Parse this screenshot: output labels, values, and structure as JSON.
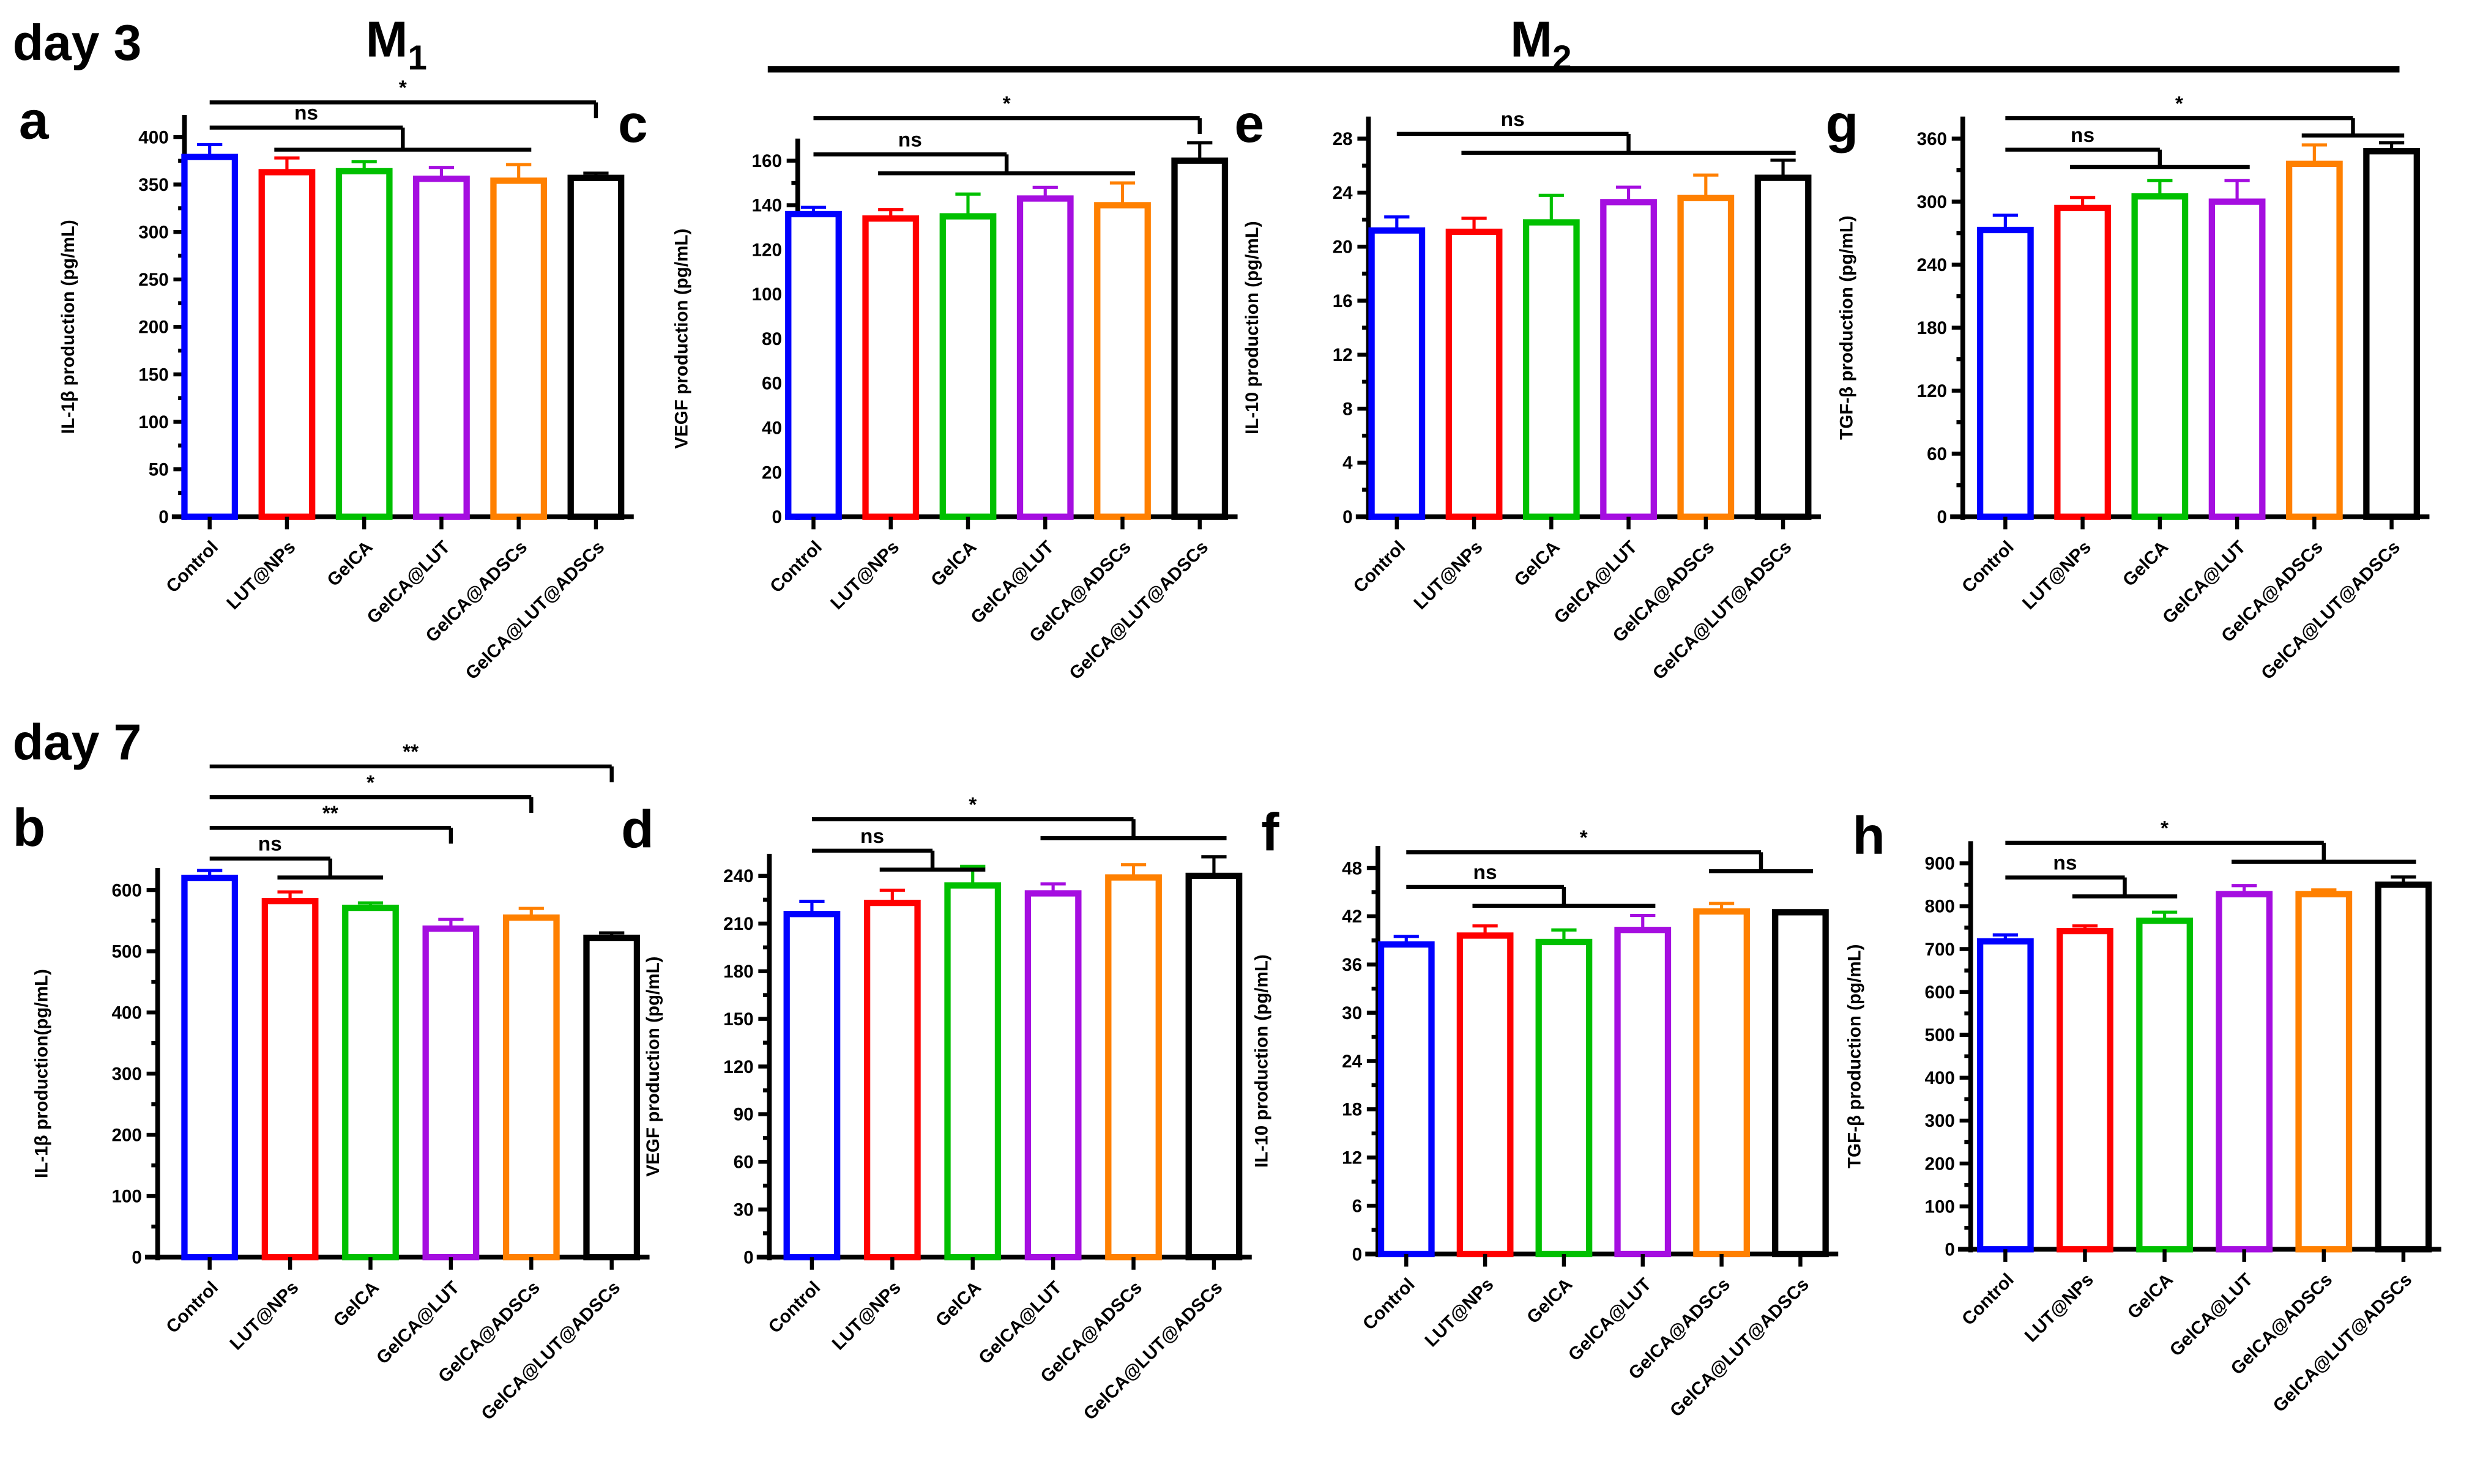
{
  "headers": {
    "day3": "day 3",
    "day7": "day 7",
    "m1": "M",
    "m1_sub": "1",
    "m2": "M",
    "m2_sub": "2"
  },
  "colors": [
    "#0000ff",
    "#ff0000",
    "#00c000",
    "#a50ee0",
    "#ff8000",
    "#000000"
  ],
  "chart_data": [
    {
      "panel": "a",
      "type": "bar",
      "ylabel": "IL-1β production (pg/mL)",
      "categories": [
        "Control",
        "LUT@NPs",
        "GelCA",
        "GelCA@LUT",
        "GelCA@ADSCs",
        "GelCA@LUT@ADSCs"
      ],
      "values": [
        379,
        363,
        364,
        356,
        354,
        357
      ],
      "errors": [
        13,
        15,
        10,
        12,
        17,
        5
      ],
      "ylim": [
        0,
        400
      ],
      "yticks": [
        "0",
        "50",
        "100",
        "150",
        "200",
        "250",
        "300",
        "350",
        "400"
      ],
      "brackets": [
        {
          "label": "ns",
          "from": 0,
          "to": [
            1,
            4
          ]
        },
        {
          "label": "*",
          "from": 0,
          "to": [
            5,
            5
          ]
        }
      ]
    },
    {
      "panel": "c",
      "type": "bar",
      "ylabel": "VEGF production (pg/mL)",
      "categories": [
        "Control",
        "LUT@NPs",
        "GelCA",
        "GelCA@LUT",
        "GelCA@ADSCs",
        "GelCA@LUT@ADSCs"
      ],
      "values": [
        136,
        134,
        135,
        143,
        140,
        160
      ],
      "errors": [
        3,
        4,
        10,
        5,
        10,
        8
      ],
      "ylim": [
        0,
        160
      ],
      "yticks": [
        "0",
        "20",
        "40",
        "60",
        "80",
        "100",
        "120",
        "140",
        "160"
      ],
      "brackets": [
        {
          "label": "ns",
          "from": 0,
          "to": [
            1,
            4
          ]
        },
        {
          "label": "*",
          "from": 0,
          "to": [
            5,
            5
          ]
        }
      ]
    },
    {
      "panel": "e",
      "type": "bar",
      "ylabel": "IL-10 production (pg/mL)",
      "categories": [
        "Control",
        "LUT@NPs",
        "GelCA",
        "GelCA@LUT",
        "GelCA@ADSCs",
        "GelCA@LUT@ADSCs"
      ],
      "values": [
        21.2,
        21.1,
        21.8,
        23.3,
        23.6,
        25.1
      ],
      "errors": [
        1.0,
        1.0,
        2.0,
        1.1,
        1.7,
        1.3
      ],
      "ylim": [
        0,
        28
      ],
      "yticks": [
        "0",
        "4",
        "8",
        "12",
        "16",
        "20",
        "24",
        "28"
      ],
      "brackets": [
        {
          "label": "ns",
          "from": 0,
          "to": [
            1,
            5
          ]
        }
      ]
    },
    {
      "panel": "g",
      "type": "bar",
      "ylabel": "TGF-β production (pg/mL)",
      "categories": [
        "Control",
        "LUT@NPs",
        "GelCA",
        "GelCA@LUT",
        "GelCA@ADSCs",
        "GelCA@LUT@ADSCs"
      ],
      "values": [
        273,
        294,
        305,
        300,
        336,
        348
      ],
      "errors": [
        14,
        10,
        15,
        20,
        18,
        8
      ],
      "ylim": [
        0,
        360
      ],
      "yticks": [
        "0",
        "60",
        "120",
        "180",
        "240",
        "300",
        "360"
      ],
      "brackets": [
        {
          "label": "ns",
          "from": 0,
          "to": [
            1,
            3
          ]
        },
        {
          "label": "*",
          "from": 0,
          "to": [
            4,
            5
          ]
        }
      ]
    },
    {
      "panel": "b",
      "type": "bar",
      "ylabel": "IL-1β  production(pg/mL)",
      "categories": [
        "Control",
        "LUT@NPs",
        "GelCA",
        "GelCA@LUT",
        "GelCA@ADSCs",
        "GelCA@LUT@ADSCs"
      ],
      "values": [
        620,
        582,
        571,
        537,
        555,
        522
      ],
      "errors": [
        12,
        15,
        8,
        15,
        15,
        8
      ],
      "ylim": [
        0,
        600
      ],
      "yticks": [
        "0",
        "100",
        "200",
        "300",
        "400",
        "500",
        "600"
      ],
      "brackets": [
        {
          "label": "ns",
          "from": 0,
          "to": [
            1,
            2
          ]
        },
        {
          "label": "**",
          "from": 0,
          "to": [
            3,
            3
          ]
        },
        {
          "label": "*",
          "from": 0,
          "to": [
            4,
            4
          ]
        },
        {
          "label": "**",
          "from": 0,
          "to": [
            5,
            5
          ]
        }
      ]
    },
    {
      "panel": "d",
      "type": "bar",
      "ylabel": "VEGF production (pg/mL)",
      "categories": [
        "Control",
        "LUT@NPs",
        "GelCA",
        "GelCA@LUT",
        "GelCA@ADSCs",
        "GelCA@LUT@ADSCs"
      ],
      "values": [
        216,
        223,
        234,
        229,
        239,
        240
      ],
      "errors": [
        8,
        8,
        12,
        6,
        8,
        12
      ],
      "ylim": [
        0,
        240
      ],
      "yticks": [
        "0",
        "30",
        "60",
        "90",
        "120",
        "150",
        "180",
        "210",
        "240"
      ],
      "brackets": [
        {
          "label": "ns",
          "from": 0,
          "to": [
            1,
            2
          ]
        },
        {
          "label": "*",
          "from": 0,
          "to": [
            3,
            5
          ]
        }
      ]
    },
    {
      "panel": "f",
      "type": "bar",
      "ylabel": "IL-10 production (pg/mL)",
      "categories": [
        "Control",
        "LUT@NPs",
        "GelCA",
        "GelCA@LUT",
        "GelCA@ADSCs",
        "GelCA@LUT@ADSCs"
      ],
      "values": [
        38.5,
        39.6,
        38.8,
        40.3,
        42.6,
        42.5
      ],
      "errors": [
        1.0,
        1.2,
        1.5,
        1.8,
        1.0,
        0
      ],
      "ylim": [
        0,
        48
      ],
      "yticks": [
        "0",
        "6",
        "12",
        "18",
        "24",
        "30",
        "36",
        "42",
        "48"
      ],
      "brackets": [
        {
          "label": "ns",
          "from": 0,
          "to": [
            1,
            3
          ]
        },
        {
          "label": "*",
          "from": 0,
          "to": [
            4,
            5
          ]
        }
      ]
    },
    {
      "panel": "h",
      "type": "bar",
      "ylabel": "TGF-β production (pg/mL)",
      "categories": [
        "Control",
        "LUT@NPs",
        "GelCA",
        "GelCA@LUT",
        "GelCA@ADSCs",
        "GelCA@LUT@ADSCs"
      ],
      "values": [
        718,
        742,
        766,
        828,
        828,
        850
      ],
      "errors": [
        15,
        12,
        20,
        20,
        10,
        18
      ],
      "ylim": [
        0,
        900
      ],
      "yticks": [
        "0",
        "100",
        "200",
        "300",
        "400",
        "500",
        "600",
        "700",
        "800",
        "900"
      ],
      "brackets": [
        {
          "label": "ns",
          "from": 0,
          "to": [
            1,
            2
          ]
        },
        {
          "label": "*",
          "from": 0,
          "to": [
            3,
            5
          ]
        }
      ]
    }
  ]
}
